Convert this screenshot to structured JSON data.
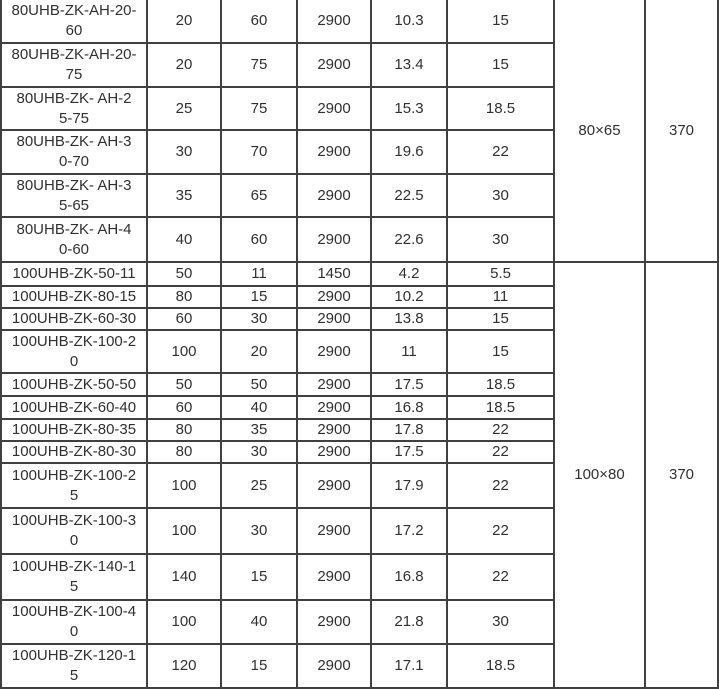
{
  "colors": {
    "border": "#404040",
    "text": "#303030",
    "background": "#ffffff"
  },
  "sections": [
    {
      "inlet_outlet": "80×65",
      "weight": "370",
      "rows": [
        {
          "model": "80UHB-ZK-AH-20-\n60",
          "values": [
            "20",
            "60",
            "2900",
            "10.3",
            "15"
          ]
        },
        {
          "model": "80UHB-ZK-AH-20-\n75",
          "values": [
            "20",
            "75",
            "2900",
            "13.4",
            "15"
          ]
        },
        {
          "model": "80UHB-ZK- AH-2\n5-75",
          "values": [
            "25",
            "75",
            "2900",
            "15.3",
            "18.5"
          ]
        },
        {
          "model": "80UHB-ZK- AH-3\n0-70",
          "values": [
            "30",
            "70",
            "2900",
            "19.6",
            "22"
          ]
        },
        {
          "model": "80UHB-ZK- AH-3\n5-65",
          "values": [
            "35",
            "65",
            "2900",
            "22.5",
            "30"
          ]
        },
        {
          "model": "80UHB-ZK- AH-4\n0-60",
          "values": [
            "40",
            "60",
            "2900",
            "22.6",
            "30"
          ]
        }
      ]
    },
    {
      "inlet_outlet": "100×80",
      "weight": "370",
      "rows": [
        {
          "model": "100UHB-ZK-50-11",
          "values": [
            "50",
            "11",
            "1450",
            "4.2",
            "5.5"
          ]
        },
        {
          "model": "100UHB-ZK-80-15",
          "values": [
            "80",
            "15",
            "2900",
            "10.2",
            "11"
          ]
        },
        {
          "model": "100UHB-ZK-60-30",
          "values": [
            "60",
            "30",
            "2900",
            "13.8",
            "15"
          ]
        },
        {
          "model": "100UHB-ZK-100-2\n0",
          "values": [
            "100",
            "20",
            "2900",
            "11",
            "15"
          ]
        },
        {
          "model": "100UHB-ZK-50-50",
          "values": [
            "50",
            "50",
            "2900",
            "17.5",
            "18.5"
          ]
        },
        {
          "model": "100UHB-ZK-60-40",
          "values": [
            "60",
            "40",
            "2900",
            "16.8",
            "18.5"
          ]
        },
        {
          "model": "100UHB-ZK-80-35",
          "values": [
            "80",
            "35",
            "2900",
            "17.8",
            "22"
          ]
        },
        {
          "model": "100UHB-ZK-80-30",
          "values": [
            "80",
            "30",
            "2900",
            "17.5",
            "22"
          ]
        },
        {
          "model": "100UHB-ZK-100-2\n5",
          "values": [
            "100",
            "25",
            "2900",
            "17.9",
            "22"
          ]
        },
        {
          "model": "100UHB-ZK-100-3\n0",
          "values": [
            "100",
            "30",
            "2900",
            "17.2",
            "22"
          ]
        },
        {
          "model": "100UHB-ZK-140-1\n5",
          "values": [
            "140",
            "15",
            "2900",
            "16.8",
            "22"
          ]
        },
        {
          "model": "100UHB-ZK-100-4\n0",
          "values": [
            "100",
            "40",
            "2900",
            "21.8",
            "30"
          ]
        },
        {
          "model": "100UHB-ZK-120-1\n5",
          "values": [
            "120",
            "15",
            "2900",
            "17.1",
            "18.5"
          ]
        }
      ]
    }
  ]
}
